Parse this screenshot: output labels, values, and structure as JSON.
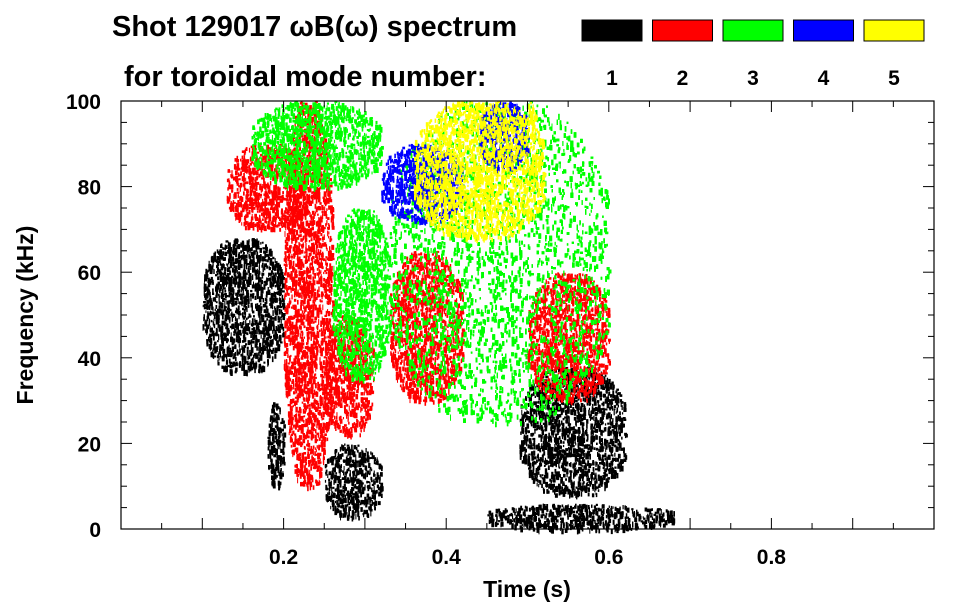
{
  "chart_data": {
    "type": "heatmap",
    "title_line1": "Shot 129017 ωB(ω) spectrum",
    "title_line2": "for toroidal mode number:",
    "xlabel": "Time (s)",
    "ylabel": "Frequency (kHz)",
    "xlim": [
      0.0,
      1.0
    ],
    "ylim": [
      0,
      100
    ],
    "x_ticks": [
      0.2,
      0.4,
      0.6,
      0.8
    ],
    "y_ticks": [
      0,
      20,
      40,
      60,
      80,
      100
    ],
    "x_tick_labels": [
      "0.2",
      "0.4",
      "0.6",
      "0.8"
    ],
    "y_tick_labels": [
      "0",
      "20",
      "40",
      "60",
      "80",
      "100"
    ],
    "grid": false,
    "legend_placement": "top-right",
    "legend": [
      {
        "mode": "1",
        "color": "#000000"
      },
      {
        "mode": "2",
        "color": "#ff0000"
      },
      {
        "mode": "3",
        "color": "#00ff00"
      },
      {
        "mode": "4",
        "color": "#0000ff"
      },
      {
        "mode": "5",
        "color": "#ffff00"
      }
    ],
    "series": [
      {
        "mode": 1,
        "color": "#000000",
        "regions": [
          {
            "t": [
              0.1,
              0.2
            ],
            "f": [
              37,
              68
            ]
          },
          {
            "t": [
              0.18,
              0.2
            ],
            "f": [
              10,
              30
            ]
          },
          {
            "t": [
              0.25,
              0.32
            ],
            "f": [
              3,
              20
            ]
          },
          {
            "t": [
              0.49,
              0.62
            ],
            "f": [
              8,
              38
            ]
          },
          {
            "t": [
              0.45,
              0.68
            ],
            "f": [
              0,
              6
            ]
          }
        ]
      },
      {
        "mode": 2,
        "color": "#ff0000",
        "regions": [
          {
            "t": [
              0.13,
              0.23
            ],
            "f": [
              70,
              90
            ]
          },
          {
            "t": [
              0.2,
              0.26
            ],
            "f": [
              10,
              100
            ]
          },
          {
            "t": [
              0.25,
              0.31
            ],
            "f": [
              22,
              50
            ]
          },
          {
            "t": [
              0.33,
              0.42
            ],
            "f": [
              30,
              65
            ]
          },
          {
            "t": [
              0.5,
              0.6
            ],
            "f": [
              30,
              60
            ]
          }
        ]
      },
      {
        "mode": 3,
        "color": "#00ff00",
        "regions": [
          {
            "t": [
              0.16,
              0.32
            ],
            "f": [
              80,
              100
            ]
          },
          {
            "t": [
              0.26,
              0.33
            ],
            "f": [
              35,
              75
            ]
          },
          {
            "t": [
              0.33,
              0.6
            ],
            "f": [
              25,
              100
            ]
          }
        ]
      },
      {
        "mode": 4,
        "color": "#0000ff",
        "regions": [
          {
            "t": [
              0.32,
              0.42
            ],
            "f": [
              72,
              90
            ]
          },
          {
            "t": [
              0.44,
              0.5
            ],
            "f": [
              84,
              100
            ]
          }
        ]
      },
      {
        "mode": 5,
        "color": "#ffff00",
        "regions": [
          {
            "t": [
              0.36,
              0.52
            ],
            "f": [
              68,
              100
            ]
          },
          {
            "t": [
              0.5,
              0.51
            ],
            "f": [
              95,
              100
            ]
          }
        ]
      }
    ]
  }
}
